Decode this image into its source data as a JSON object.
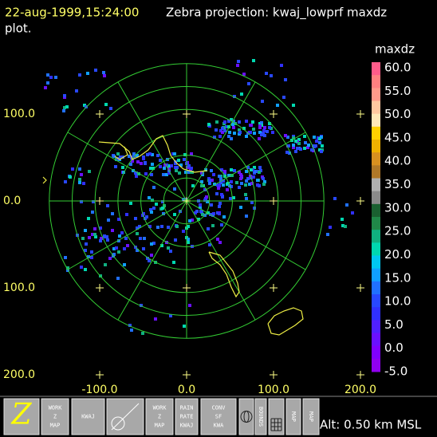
{
  "header": {
    "timestamp": "22-aug-1999,15:24:00",
    "title": "Zebra projection: kwaj_lowprf maxdz",
    "title_cont": "plot."
  },
  "plot": {
    "y_labels": [
      "100.0",
      "0.0",
      "100.0",
      "200.0"
    ],
    "x_labels": [
      "-100.0",
      "0.0",
      "100.0",
      "200.0"
    ]
  },
  "colorbar": {
    "title": "maxdz",
    "labels": [
      "60.0",
      "55.0",
      "50.0",
      "45.0",
      "40.0",
      "35.0",
      "30.0",
      "25.0",
      "20.0",
      "15.0",
      "10.0",
      "5.0",
      "0.0",
      "-5.0"
    ],
    "colors": [
      "#ff5c8a",
      "#ff8080",
      "#ff9a8a",
      "#ffc8a0",
      "#ffe8b8",
      "#ffd000",
      "#f0b000",
      "#d89020",
      "#b07828",
      "#b0b0b0",
      "#8a8a8a",
      "#1a6030",
      "#208848",
      "#10b080",
      "#00d8b0",
      "#00c8f0",
      "#10a0ff",
      "#2070ff",
      "#2848ff",
      "#3030ff",
      "#5020ff",
      "#6a10ff",
      "#8000ff",
      "#9000f0"
    ]
  },
  "toolbar": {
    "icons": [
      {
        "lines": [
          "Z"
        ]
      },
      {
        "lines": [
          "WORK",
          "Z",
          "MAP"
        ]
      },
      {
        "lines": [
          "KWAJ"
        ]
      },
      {
        "kind": "radar"
      },
      {
        "lines": [
          "WORK",
          "Z",
          "MAP"
        ]
      },
      {
        "lines": [
          "RAIN",
          "RATE",
          "KWAJ"
        ]
      },
      {
        "lines": [
          "CONV",
          "SF",
          "KWA"
        ]
      },
      {
        "kind": "globe"
      },
      {
        "lines": [
          "BOUNDS"
        ]
      },
      {
        "kind": "grid"
      },
      {
        "lines": [
          "MAP"
        ]
      },
      {
        "lines": [
          "MAP"
        ]
      }
    ],
    "altitude": "Alt: 0.50 km MSL"
  }
}
